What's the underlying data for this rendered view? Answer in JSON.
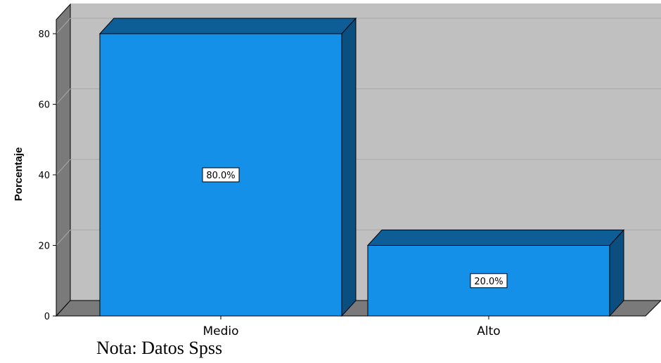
{
  "chart_data": {
    "type": "bar",
    "categories": [
      "Medio",
      "Alto"
    ],
    "values": [
      80,
      20
    ],
    "data_labels": [
      "80.0%",
      "20.0%"
    ],
    "title": "",
    "xlabel": "",
    "ylabel": "Porcentaje",
    "ylim": [
      0,
      80
    ],
    "yticks": [
      0,
      20,
      40,
      60,
      80
    ],
    "grid": true,
    "three_d": true,
    "colors": {
      "bar_front": "#1490e8",
      "bar_top": "#0d5e96",
      "bar_side": "#0b4f80",
      "wall": "#c0c0c0",
      "wall_side": "#7a7a7a",
      "floor": "#7a7a7a",
      "grid": "#a8a8a8"
    }
  },
  "note": "Nota: Datos Spss"
}
